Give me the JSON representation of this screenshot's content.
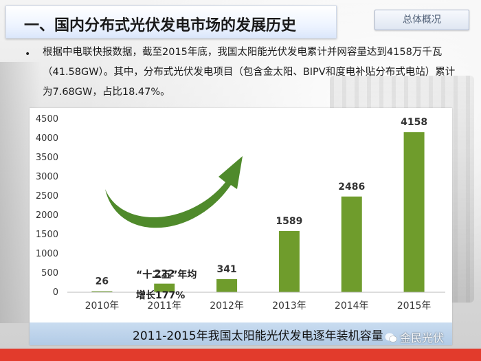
{
  "header": {
    "title": "一、国内分布式光伏发电市场的发展历史",
    "tab_label": "总体概况"
  },
  "body": {
    "bullet": "•",
    "paragraph": "根据中电联快报数据，截至2015年底，我国太阳能光伏发电累计并网容量达到4158万千瓦（41.58GW）。其中，分布式光伏发电项目（包含金太阳、BIPV和度电补贴分布式电站）累计为7.68GW，占比18.47%。"
  },
  "chart_data": {
    "type": "bar",
    "categories": [
      "2010年",
      "2011年",
      "2012年",
      "2013年",
      "2014年",
      "2015年"
    ],
    "values": [
      26,
      222,
      341,
      1589,
      2486,
      4158
    ],
    "ylim": [
      0,
      4500
    ],
    "yticks": [
      0,
      500,
      1000,
      1500,
      2000,
      2500,
      3000,
      3500,
      4000,
      4500
    ],
    "ytick_labels": [
      "0",
      "500",
      "1000",
      "1500",
      "2000",
      "2500",
      "3000",
      "3500",
      "4000",
      "4500"
    ],
    "annotation_line1": "“十二五”年均",
    "annotation_line2": "增长177%",
    "caption": "2011-2015年我国太阳能光伏发电逐年装机容量",
    "bar_color": "#6f9c2c",
    "arrow_color": "#4f8a2b",
    "grid": false
  },
  "watermark": {
    "text": "金民光伏",
    "icon": "wechat-icon"
  },
  "colors": {
    "accent_red": "#e23b2c",
    "caption_blue": "#b9d0ea"
  }
}
